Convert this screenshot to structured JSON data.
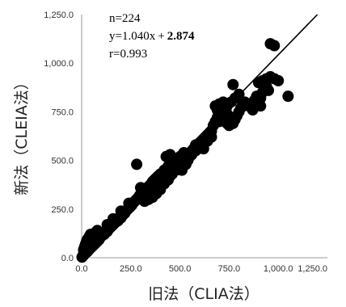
{
  "chart_data": {
    "type": "scatter",
    "xlabel": "旧法（CLIA法）",
    "ylabel": "新法（CLEIA法）",
    "xlim": [
      0,
      1250
    ],
    "ylim": [
      0,
      1250
    ],
    "x_ticks": [
      "0.0",
      "250.0",
      "500.0",
      "750.0",
      "1,000.0",
      "1,250.0"
    ],
    "y_ticks": [
      "0.0",
      "250.0",
      "500.0",
      "750.0",
      "1,000.0",
      "1,250.0"
    ],
    "grid": false,
    "annotations": {
      "n": "n=224",
      "equation_main": "y=1.040x + ",
      "equation_intercept": "2.874",
      "r": "r=0.993"
    },
    "regression_line": {
      "slope": 1.04,
      "intercept": 2.874
    },
    "marker_color": "#000000",
    "points": [
      [
        2,
        3
      ],
      [
        5,
        8
      ],
      [
        8,
        12
      ],
      [
        10,
        18
      ],
      [
        12,
        15
      ],
      [
        15,
        22
      ],
      [
        18,
        25
      ],
      [
        20,
        30
      ],
      [
        22,
        28
      ],
      [
        25,
        35
      ],
      [
        28,
        30
      ],
      [
        30,
        40
      ],
      [
        32,
        38
      ],
      [
        35,
        45
      ],
      [
        38,
        42
      ],
      [
        40,
        50
      ],
      [
        42,
        48
      ],
      [
        45,
        55
      ],
      [
        48,
        52
      ],
      [
        50,
        60
      ],
      [
        52,
        58
      ],
      [
        55,
        65
      ],
      [
        58,
        62
      ],
      [
        60,
        70
      ],
      [
        62,
        68
      ],
      [
        65,
        75
      ],
      [
        68,
        72
      ],
      [
        70,
        80
      ],
      [
        72,
        78
      ],
      [
        75,
        85
      ],
      [
        78,
        82
      ],
      [
        80,
        90
      ],
      [
        82,
        88
      ],
      [
        85,
        95
      ],
      [
        88,
        92
      ],
      [
        90,
        100
      ],
      [
        10,
        40
      ],
      [
        15,
        55
      ],
      [
        20,
        70
      ],
      [
        25,
        85
      ],
      [
        30,
        95
      ],
      [
        35,
        100
      ],
      [
        40,
        110
      ],
      [
        45,
        120
      ],
      [
        50,
        90
      ],
      [
        55,
        110
      ],
      [
        60,
        120
      ],
      [
        70,
        130
      ],
      [
        80,
        140
      ],
      [
        90,
        120
      ],
      [
        95,
        105
      ],
      [
        100,
        110
      ],
      [
        105,
        115
      ],
      [
        110,
        125
      ],
      [
        115,
        120
      ],
      [
        120,
        130
      ],
      [
        125,
        140
      ],
      [
        130,
        135
      ],
      [
        135,
        145
      ],
      [
        140,
        150
      ],
      [
        145,
        155
      ],
      [
        150,
        160
      ],
      [
        155,
        165
      ],
      [
        160,
        170
      ],
      [
        165,
        175
      ],
      [
        170,
        180
      ],
      [
        175,
        185
      ],
      [
        180,
        195
      ],
      [
        185,
        190
      ],
      [
        190,
        200
      ],
      [
        195,
        210
      ],
      [
        200,
        205
      ],
      [
        205,
        215
      ],
      [
        210,
        220
      ],
      [
        215,
        225
      ],
      [
        220,
        230
      ],
      [
        225,
        240
      ],
      [
        230,
        245
      ],
      [
        235,
        250
      ],
      [
        240,
        255
      ],
      [
        245,
        260
      ],
      [
        250,
        265
      ],
      [
        255,
        270
      ],
      [
        260,
        280
      ],
      [
        265,
        285
      ],
      [
        270,
        290
      ],
      [
        275,
        295
      ],
      [
        280,
        300
      ],
      [
        285,
        305
      ],
      [
        290,
        310
      ],
      [
        295,
        320
      ],
      [
        300,
        325
      ],
      [
        305,
        330
      ],
      [
        310,
        335
      ],
      [
        315,
        340
      ],
      [
        320,
        345
      ],
      [
        325,
        350
      ],
      [
        330,
        355
      ],
      [
        335,
        360
      ],
      [
        340,
        365
      ],
      [
        345,
        370
      ],
      [
        350,
        375
      ],
      [
        355,
        380
      ],
      [
        360,
        390
      ],
      [
        365,
        395
      ],
      [
        370,
        400
      ],
      [
        375,
        405
      ],
      [
        380,
        410
      ],
      [
        385,
        415
      ],
      [
        390,
        420
      ],
      [
        130,
        170
      ],
      [
        160,
        200
      ],
      [
        200,
        240
      ],
      [
        240,
        280
      ],
      [
        300,
        360
      ],
      [
        330,
        300
      ],
      [
        350,
        320
      ],
      [
        370,
        340
      ],
      [
        390,
        360
      ],
      [
        400,
        370
      ],
      [
        410,
        380
      ],
      [
        420,
        390
      ],
      [
        430,
        400
      ],
      [
        440,
        410
      ],
      [
        450,
        420
      ],
      [
        460,
        430
      ],
      [
        280,
        480
      ],
      [
        400,
        430
      ],
      [
        420,
        450
      ],
      [
        440,
        470
      ],
      [
        460,
        490
      ],
      [
        480,
        500
      ],
      [
        500,
        520
      ],
      [
        520,
        540
      ],
      [
        430,
        520
      ],
      [
        450,
        530
      ],
      [
        470,
        500
      ],
      [
        490,
        470
      ],
      [
        510,
        450
      ],
      [
        530,
        480
      ],
      [
        540,
        500
      ],
      [
        550,
        520
      ],
      [
        560,
        540
      ],
      [
        570,
        560
      ],
      [
        580,
        580
      ],
      [
        590,
        570
      ],
      [
        600,
        590
      ],
      [
        610,
        600
      ],
      [
        620,
        580
      ],
      [
        630,
        610
      ],
      [
        640,
        630
      ],
      [
        650,
        640
      ],
      [
        660,
        650
      ],
      [
        670,
        680
      ],
      [
        680,
        700
      ],
      [
        690,
        720
      ],
      [
        700,
        740
      ],
      [
        710,
        760
      ],
      [
        720,
        780
      ],
      [
        730,
        760
      ],
      [
        740,
        740
      ],
      [
        750,
        720
      ],
      [
        760,
        700
      ],
      [
        770,
        690
      ],
      [
        780,
        710
      ],
      [
        790,
        730
      ],
      [
        800,
        750
      ],
      [
        810,
        770
      ],
      [
        820,
        790
      ],
      [
        830,
        800
      ],
      [
        680,
        780
      ],
      [
        700,
        790
      ],
      [
        720,
        800
      ],
      [
        740,
        780
      ],
      [
        760,
        800
      ],
      [
        780,
        820
      ],
      [
        800,
        840
      ],
      [
        770,
        890
      ],
      [
        720,
        720
      ],
      [
        730,
        700
      ],
      [
        740,
        690
      ],
      [
        750,
        680
      ],
      [
        760,
        710
      ],
      [
        690,
        760
      ],
      [
        700,
        700
      ],
      [
        710,
        730
      ],
      [
        660,
        620
      ],
      [
        640,
        600
      ],
      [
        620,
        560
      ],
      [
        600,
        580
      ],
      [
        580,
        550
      ],
      [
        560,
        530
      ],
      [
        540,
        510
      ],
      [
        520,
        490
      ],
      [
        500,
        470
      ],
      [
        480,
        450
      ],
      [
        460,
        440
      ],
      [
        440,
        400
      ],
      [
        420,
        380
      ],
      [
        400,
        350
      ],
      [
        380,
        330
      ],
      [
        360,
        310
      ],
      [
        340,
        300
      ],
      [
        320,
        290
      ],
      [
        900,
        800
      ],
      [
        910,
        820
      ],
      [
        920,
        850
      ],
      [
        930,
        870
      ],
      [
        940,
        880
      ],
      [
        950,
        860
      ],
      [
        900,
        900
      ],
      [
        920,
        910
      ],
      [
        940,
        920
      ],
      [
        960,
        930
      ],
      [
        980,
        920
      ],
      [
        1000,
        910
      ],
      [
        960,
        1100
      ],
      [
        980,
        1090
      ],
      [
        1050,
        830
      ],
      [
        910,
        780
      ],
      [
        850,
        780
      ],
      [
        870,
        760
      ],
      [
        880,
        810
      ],
      [
        890,
        830
      ]
    ]
  }
}
